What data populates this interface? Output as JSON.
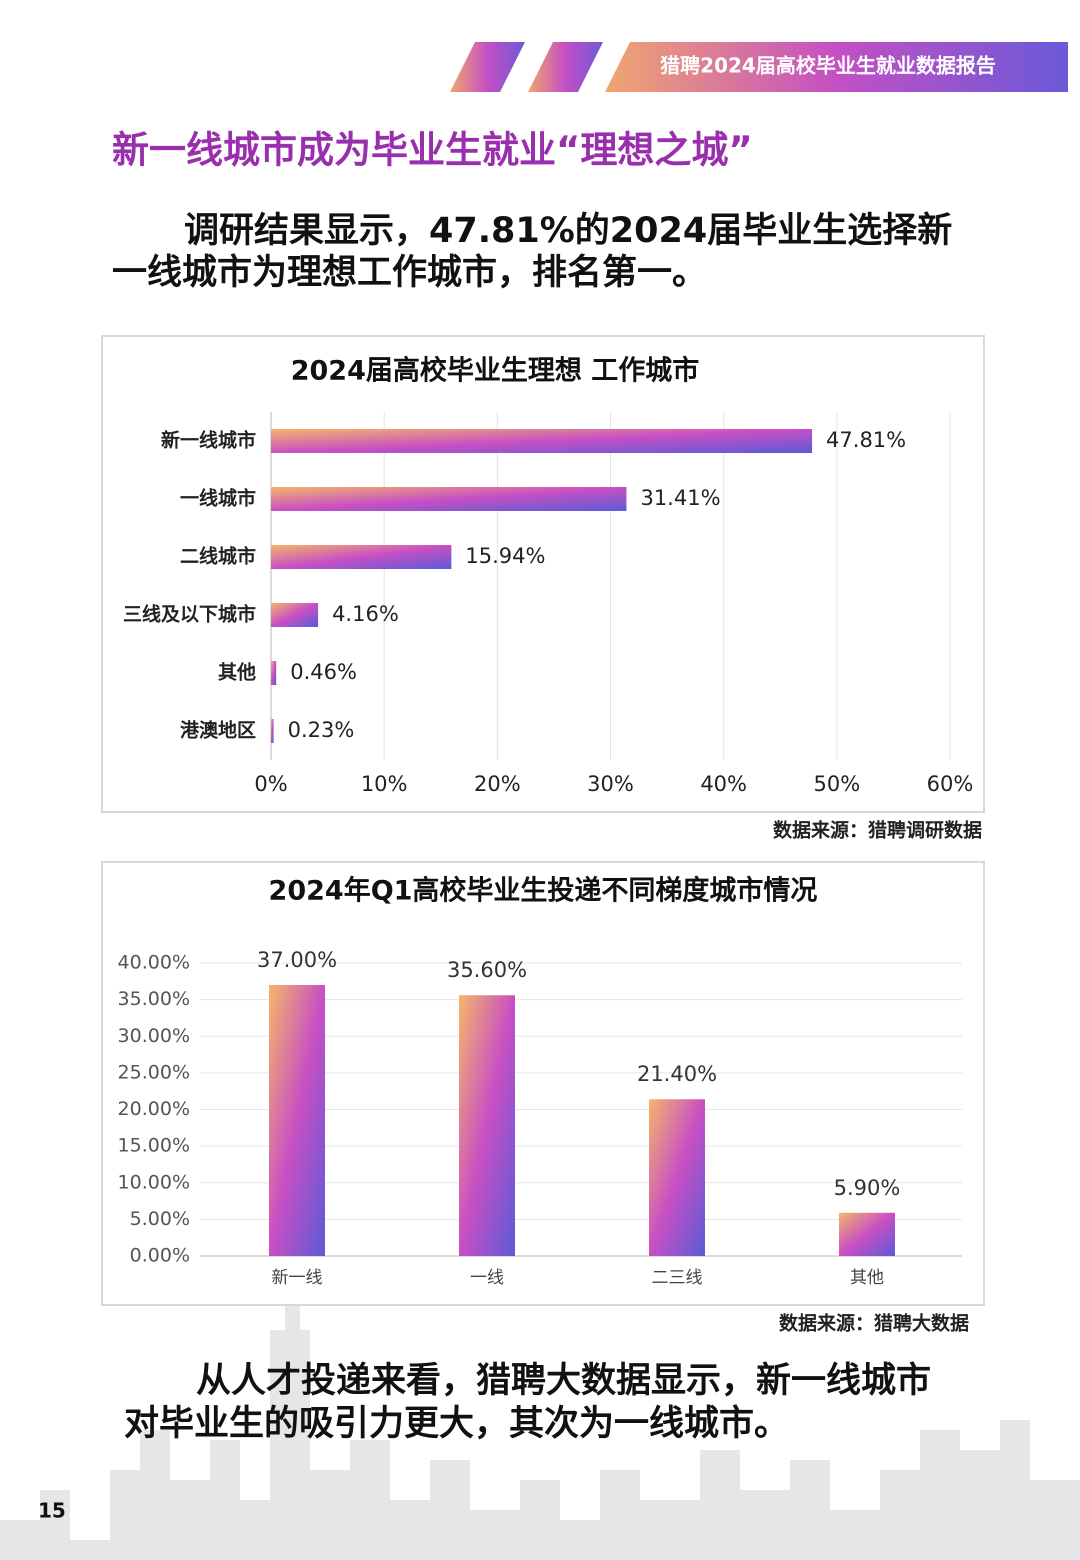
{
  "header": {
    "report_title": "猎聘2024届高校毕业生就业数据报告"
  },
  "heading": "新一线城市成为毕业生就业“理想之城”",
  "paragraph_1": [
    "调研结果显示，47.81%的2024届毕业生选择新",
    "一线城市为理想工作城市，排名第一。"
  ],
  "chart_data": [
    {
      "type": "bar",
      "orientation": "horizontal",
      "title": "2024届高校毕业生理想 工作城市",
      "categories": [
        "新一线城市",
        "一线城市",
        "二线城市",
        "三线及以下城市",
        "其他",
        "港澳地区"
      ],
      "values": [
        47.81,
        31.41,
        15.94,
        4.16,
        0.46,
        0.23
      ],
      "value_labels": [
        "47.81%",
        "31.41%",
        "15.94%",
        "4.16%",
        "0.46%",
        "0.23%"
      ],
      "xlim": [
        0,
        60
      ],
      "xticks": [
        {
          "value": 0,
          "label": "0%"
        },
        {
          "value": 10,
          "label": "10%"
        },
        {
          "value": 20,
          "label": "20%"
        },
        {
          "value": 30,
          "label": "30%"
        },
        {
          "value": 40,
          "label": "40%"
        },
        {
          "value": 50,
          "label": "50%"
        },
        {
          "value": 60,
          "label": "60%"
        }
      ],
      "grid": true,
      "gradient": [
        "#f4b66a",
        "#c84fc4",
        "#5b5bd6"
      ]
    },
    {
      "type": "bar",
      "orientation": "vertical",
      "title": "2024年Q1高校毕业生投递不同梯度城市情况",
      "categories": [
        "新一线",
        "一线",
        "二三线",
        "其他"
      ],
      "values": [
        37,
        35.6,
        21.4,
        5.9
      ],
      "value_labels": [
        "37.00%",
        "35.60%",
        "21.40%",
        "5.90%"
      ],
      "ylim": [
        0,
        40
      ],
      "yticks": [
        {
          "value": 0,
          "label": "0.00%"
        },
        {
          "value": 5,
          "label": "5.00%"
        },
        {
          "value": 10,
          "label": "10.00%"
        },
        {
          "value": 15,
          "label": "15.00%"
        },
        {
          "value": 20,
          "label": "20.00%"
        },
        {
          "value": 25,
          "label": "25.00%"
        },
        {
          "value": 30,
          "label": "30.00%"
        },
        {
          "value": 35,
          "label": "35.00%"
        },
        {
          "value": 40,
          "label": "40.00%"
        }
      ],
      "grid": true,
      "gradient": [
        "#f4b66a",
        "#c84fc4",
        "#5b5bd6"
      ]
    }
  ],
  "sources": [
    "数据来源：猎聘调研数据",
    "数据来源：猎聘大数据"
  ],
  "paragraph_2": [
    "从人才投递来看，猎聘大数据显示，新一线城市",
    "对毕业生的吸引力更大，其次为一线城市。"
  ],
  "page_number": 15
}
